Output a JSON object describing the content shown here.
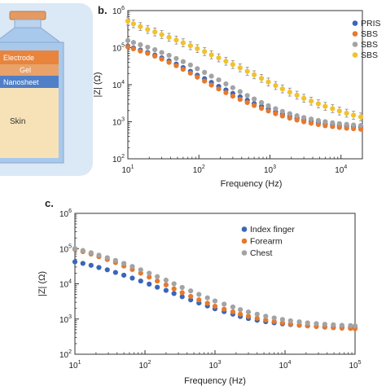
{
  "schematic": {
    "layers": [
      "Electrode",
      "Gel",
      "Nanosheet",
      "Skin"
    ],
    "colors": {
      "electrode": "#e8843c",
      "gel": "#e8a26a",
      "nanosheet": "#4f7fc6",
      "skin": "#f7e2b8",
      "jar": "#a8c8ec",
      "lid": "#e49a62",
      "outer": "#dbe8f5"
    }
  },
  "chart_data": [
    {
      "panel": "b.",
      "type": "scatter",
      "xlabel": "Frequency (Hz)",
      "ylabel": "|Z| (Ω)",
      "xscale": "log",
      "yscale": "log",
      "xlim": [
        10,
        20000
      ],
      "ylim": [
        100,
        1000000
      ],
      "xticks": [
        {
          "v": 10,
          "base": "10",
          "exp": "1"
        },
        {
          "v": 100,
          "base": "10",
          "exp": "2"
        },
        {
          "v": 1000,
          "base": "10",
          "exp": "3"
        },
        {
          "v": 10000,
          "base": "10",
          "exp": "4"
        }
      ],
      "yticks": [
        {
          "v": 100,
          "base": "10",
          "exp": "2"
        },
        {
          "v": 1000,
          "base": "10",
          "exp": "3"
        },
        {
          "v": 10000,
          "base": "10",
          "exp": "4"
        },
        {
          "v": 100000,
          "base": "10",
          "exp": "5"
        },
        {
          "v": 1000000,
          "base": "10",
          "exp": "6"
        }
      ],
      "legend_position": "right",
      "series": [
        {
          "name": "PRIS",
          "color": "#3a66b8",
          "error_bars": false,
          "x": [
            10,
            12,
            15,
            19,
            24,
            30,
            38,
            48,
            60,
            76,
            95,
            120,
            150,
            190,
            240,
            300,
            380,
            480,
            600,
            760,
            950,
            1200,
            1500,
            1900,
            2400,
            3000,
            3800,
            4800,
            6000,
            7600,
            9500,
            12000,
            15000,
            19000
          ],
          "y": [
            110000,
            98000,
            86000,
            74000,
            63000,
            53000,
            44000,
            36000,
            29000,
            23000,
            18000,
            14500,
            11500,
            9000,
            7200,
            5800,
            4700,
            3800,
            3100,
            2600,
            2200,
            1850,
            1600,
            1400,
            1250,
            1120,
            1020,
            940,
            880,
            830,
            790,
            760,
            740,
            720
          ]
        },
        {
          "name": "SBS",
          "color": "#e6792d",
          "error_bars": false,
          "x": [
            10,
            12,
            15,
            19,
            24,
            30,
            38,
            48,
            60,
            76,
            95,
            120,
            150,
            190,
            240,
            300,
            380,
            480,
            600,
            760,
            950,
            1200,
            1500,
            1900,
            2400,
            3000,
            3800,
            4800,
            6000,
            7600,
            9500,
            12000,
            15000,
            19000
          ],
          "y": [
            105000,
            93000,
            81000,
            70000,
            59000,
            49000,
            40000,
            32500,
            26000,
            20500,
            16000,
            12500,
            9800,
            7700,
            6100,
            4900,
            4000,
            3300,
            2750,
            2300,
            1950,
            1650,
            1430,
            1250,
            1110,
            1000,
            910,
            840,
            780,
            740,
            700,
            670,
            650,
            630
          ]
        },
        {
          "name": "SBS",
          "color": "#a3a3a3",
          "error_bars": false,
          "x": [
            10,
            12,
            15,
            19,
            24,
            30,
            38,
            48,
            60,
            76,
            95,
            120,
            150,
            190,
            240,
            300,
            380,
            480,
            600,
            760,
            950,
            1200,
            1500,
            1900,
            2400,
            3000,
            3800,
            4800,
            6000,
            7600,
            9500,
            12000,
            15000,
            19000
          ],
          "y": [
            155000,
            138000,
            120000,
            103000,
            88000,
            74000,
            62000,
            51000,
            42000,
            34000,
            27000,
            21500,
            17000,
            13500,
            10500,
            8300,
            6500,
            5100,
            4100,
            3300,
            2700,
            2250,
            1900,
            1650,
            1450,
            1300,
            1180,
            1080,
            1000,
            940,
            890,
            850,
            820,
            790
          ]
        },
        {
          "name": "SBS",
          "color": "#f2c12e",
          "error_bars": true,
          "x": [
            10,
            12,
            15,
            19,
            24,
            30,
            38,
            48,
            60,
            76,
            95,
            120,
            150,
            190,
            240,
            300,
            380,
            480,
            600,
            760,
            950,
            1200,
            1500,
            1900,
            2400,
            3000,
            3800,
            4800,
            6000,
            7600,
            9500,
            12000,
            15000,
            19000
          ],
          "y": [
            520000,
            440000,
            370000,
            310000,
            265000,
            225000,
            190000,
            160000,
            135000,
            113000,
            94000,
            78000,
            64000,
            53000,
            43000,
            35000,
            28500,
            23000,
            18500,
            14800,
            11800,
            9500,
            7700,
            6300,
            5200,
            4300,
            3600,
            3050,
            2600,
            2250,
            1950,
            1700,
            1500,
            1350
          ]
        }
      ]
    },
    {
      "panel": "c.",
      "type": "scatter",
      "xlabel": "Frequency (Hz)",
      "ylabel": "|Z| (Ω)",
      "xscale": "log",
      "yscale": "log",
      "xlim": [
        10,
        100000
      ],
      "ylim": [
        100,
        1000000
      ],
      "xticks": [
        {
          "v": 10,
          "base": "10",
          "exp": "1"
        },
        {
          "v": 100,
          "base": "10",
          "exp": "2"
        },
        {
          "v": 1000,
          "base": "10",
          "exp": "3"
        },
        {
          "v": 10000,
          "base": "10",
          "exp": "4"
        },
        {
          "v": 100000,
          "base": "10",
          "exp": "5"
        }
      ],
      "yticks": [
        {
          "v": 100,
          "base": "10",
          "exp": "2"
        },
        {
          "v": 1000,
          "base": "10",
          "exp": "3"
        },
        {
          "v": 10000,
          "base": "10",
          "exp": "4"
        },
        {
          "v": 100000,
          "base": "10",
          "exp": "5"
        },
        {
          "v": 1000000,
          "base": "10",
          "exp": "6"
        }
      ],
      "legend_position": "top-right",
      "series": [
        {
          "name": "Index finger",
          "color": "#3a66b8",
          "error_bars": false,
          "x": [
            10,
            13,
            17,
            22,
            29,
            38,
            50,
            66,
            87,
            115,
            150,
            200,
            260,
            340,
            450,
            590,
            780,
            1000,
            1350,
            1800,
            2300,
            3000,
            4000,
            5300,
            7000,
            9200,
            12000,
            16000,
            21000,
            28000,
            37000,
            49000,
            65000,
            86000,
            100000
          ],
          "y": [
            42000,
            38000,
            33500,
            29000,
            25000,
            21000,
            17500,
            14500,
            12000,
            9800,
            8000,
            6500,
            5300,
            4300,
            3500,
            2850,
            2350,
            1950,
            1620,
            1370,
            1180,
            1030,
            920,
            840,
            780,
            730,
            695,
            665,
            640,
            620,
            605,
            590,
            580,
            570,
            560
          ]
        },
        {
          "name": "Forearm",
          "color": "#e6792d",
          "error_bars": false,
          "x": [
            10,
            13,
            17,
            22,
            29,
            38,
            50,
            66,
            87,
            115,
            150,
            200,
            260,
            340,
            450,
            590,
            780,
            1000,
            1350,
            1800,
            2300,
            3000,
            4000,
            5300,
            7000,
            9200,
            12000,
            16000,
            21000,
            28000,
            37000,
            49000,
            65000,
            86000,
            100000
          ],
          "y": [
            95000,
            82000,
            70000,
            59000,
            49000,
            40000,
            32000,
            25500,
            20000,
            15500,
            12000,
            9300,
            7200,
            5600,
            4400,
            3500,
            2800,
            2300,
            1900,
            1600,
            1370,
            1190,
            1050,
            940,
            850,
            780,
            720,
            675,
            640,
            610,
            585,
            565,
            550,
            540,
            530
          ]
        },
        {
          "name": "Chest",
          "color": "#a3a3a3",
          "error_bars": false,
          "x": [
            10,
            13,
            17,
            22,
            29,
            38,
            50,
            66,
            87,
            115,
            150,
            200,
            260,
            340,
            450,
            590,
            780,
            1000,
            1350,
            1800,
            2300,
            3000,
            4000,
            5300,
            7000,
            9200,
            12000,
            16000,
            21000,
            28000,
            37000,
            49000,
            65000,
            86000,
            100000
          ],
          "y": [
            100000,
            88000,
            76000,
            65000,
            55000,
            46000,
            38000,
            31000,
            25000,
            20000,
            16000,
            12700,
            10000,
            7900,
            6300,
            5000,
            4000,
            3250,
            2650,
            2200,
            1850,
            1580,
            1370,
            1200,
            1070,
            970,
            890,
            830,
            780,
            740,
            710,
            685,
            665,
            650,
            640
          ]
        }
      ]
    }
  ]
}
